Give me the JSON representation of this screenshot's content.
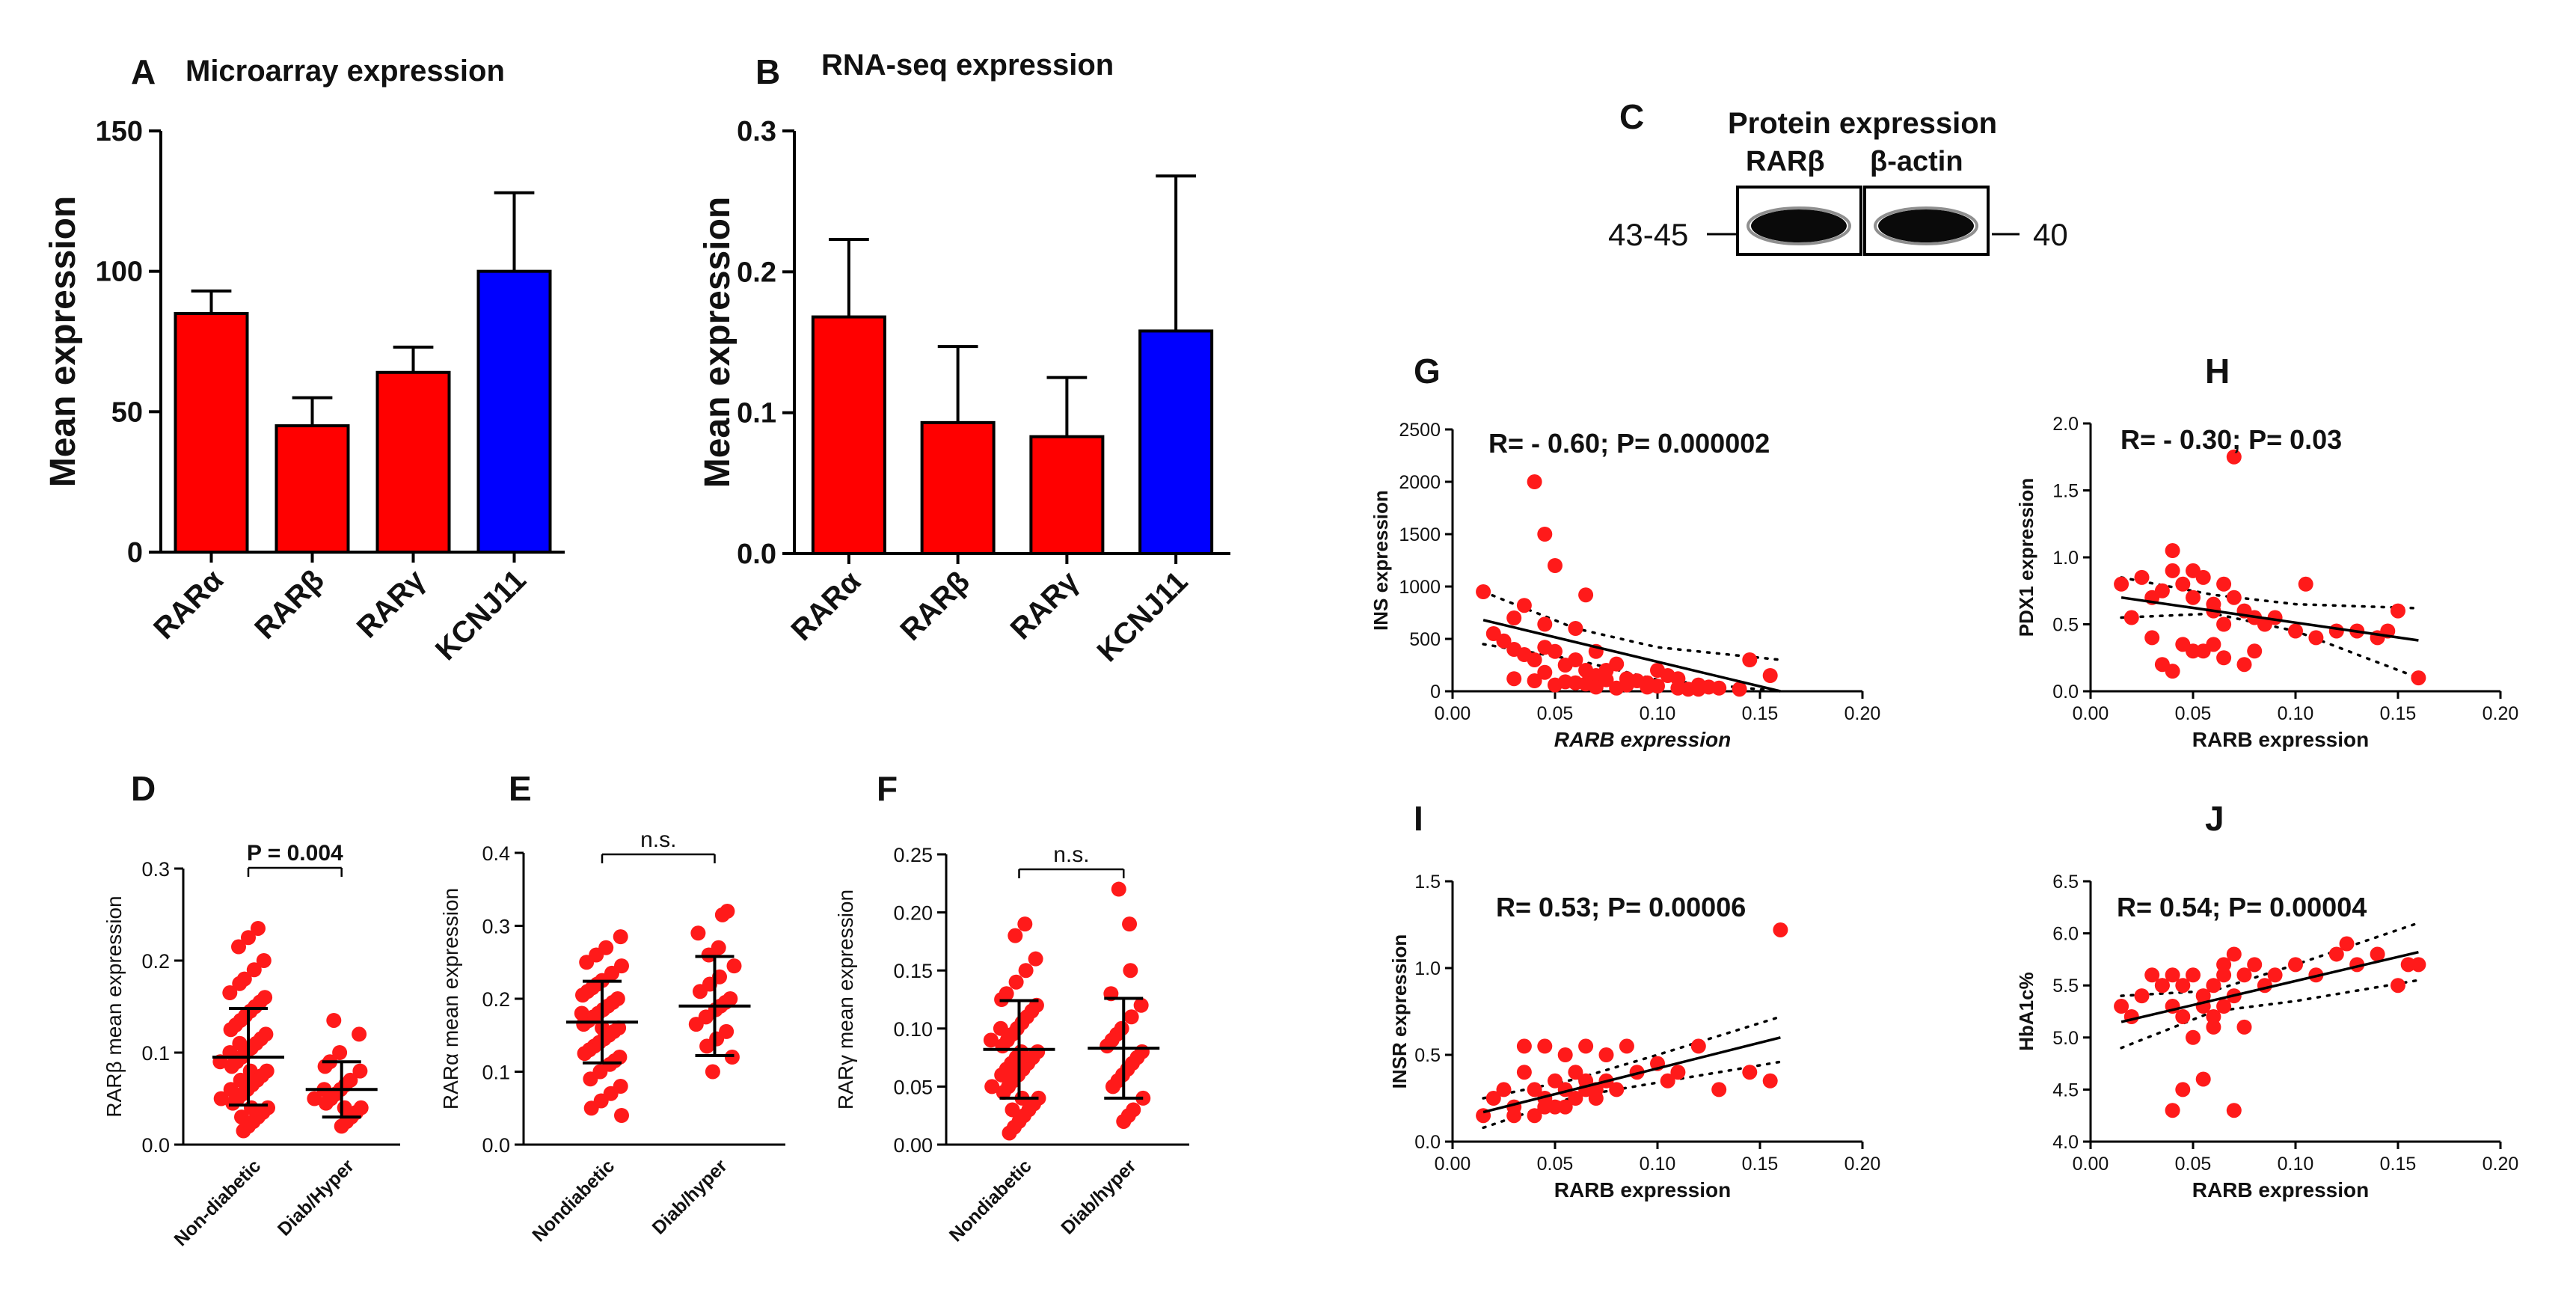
{
  "chart_data": [
    {
      "panel": "A",
      "type": "bar",
      "title": "Microarray expression",
      "ylabel": "Mean expression",
      "categories": [
        "RARα",
        "RARβ",
        "RARγ",
        "KCNJ11"
      ],
      "values": [
        85,
        45,
        64,
        100
      ],
      "errors": [
        8,
        10,
        9,
        28
      ],
      "colors": [
        "#ff0000",
        "#ff0000",
        "#ff0000",
        "#0000ff"
      ],
      "ylim": [
        0,
        150
      ],
      "yticks": [
        0,
        50,
        100,
        150
      ]
    },
    {
      "panel": "B",
      "type": "bar",
      "title": "RNA-seq expression",
      "ylabel": "Mean expression",
      "categories": [
        "RARα",
        "RARβ",
        "RARγ",
        "KCNJ11"
      ],
      "values": [
        0.168,
        0.093,
        0.083,
        0.158
      ],
      "errors": [
        0.055,
        0.054,
        0.042,
        0.11
      ],
      "colors": [
        "#ff0000",
        "#ff0000",
        "#ff0000",
        "#0000ff"
      ],
      "ylim": [
        0,
        0.3
      ],
      "yticks": [
        "0.0",
        "0.1",
        "0.2",
        "0.3"
      ]
    },
    {
      "panel": "C",
      "type": "blot",
      "title": "Protein expression",
      "lanes": [
        "RARβ",
        "β-actin"
      ],
      "left_marker": "43-45",
      "right_marker": "40"
    },
    {
      "panel": "D",
      "type": "scatter",
      "ylabel": "RARβ mean expression",
      "groups": [
        "Non-diabetic",
        "Diab/Hyper"
      ],
      "annotation": "P = 0.004",
      "ylim": [
        0,
        0.3
      ],
      "yticks": [
        "0.0",
        "0.1",
        "0.2",
        "0.3"
      ],
      "summary": [
        {
          "mean": 0.095,
          "sd_low": 0.043,
          "sd_high": 0.148
        },
        {
          "mean": 0.06,
          "sd_low": 0.03,
          "sd_high": 0.09
        }
      ],
      "points": [
        [
          0.235,
          0.225,
          0.215,
          0.2,
          0.19,
          0.18,
          0.175,
          0.165,
          0.16,
          0.155,
          0.15,
          0.145,
          0.14,
          0.135,
          0.13,
          0.125,
          0.12,
          0.115,
          0.11,
          0.11,
          0.105,
          0.1,
          0.1,
          0.095,
          0.09,
          0.09,
          0.085,
          0.08,
          0.08,
          0.075,
          0.07,
          0.07,
          0.065,
          0.06,
          0.06,
          0.055,
          0.05,
          0.05,
          0.045,
          0.04,
          0.04,
          0.035,
          0.03,
          0.03,
          0.025,
          0.02,
          0.015
        ],
        [
          0.135,
          0.12,
          0.1,
          0.09,
          0.085,
          0.08,
          0.07,
          0.065,
          0.06,
          0.06,
          0.055,
          0.05,
          0.05,
          0.045,
          0.04,
          0.04,
          0.035,
          0.03,
          0.025,
          0.02
        ]
      ]
    },
    {
      "panel": "E",
      "type": "scatter",
      "ylabel": "RARα mean expression",
      "groups": [
        "Nondiabetic",
        "Diab/hyper"
      ],
      "annotation": "n.s.",
      "ylim": [
        0,
        0.4
      ],
      "yticks": [
        "0.0",
        "0.1",
        "0.2",
        "0.3",
        "0.4"
      ],
      "summary": [
        {
          "mean": 0.168,
          "sd_low": 0.112,
          "sd_high": 0.224
        },
        {
          "mean": 0.19,
          "sd_low": 0.122,
          "sd_high": 0.258
        }
      ],
      "points": [
        [
          0.285,
          0.27,
          0.26,
          0.25,
          0.245,
          0.235,
          0.225,
          0.22,
          0.215,
          0.21,
          0.205,
          0.2,
          0.195,
          0.19,
          0.185,
          0.18,
          0.18,
          0.175,
          0.17,
          0.165,
          0.16,
          0.16,
          0.155,
          0.15,
          0.145,
          0.14,
          0.135,
          0.13,
          0.125,
          0.12,
          0.115,
          0.11,
          0.1,
          0.09,
          0.08,
          0.07,
          0.06,
          0.05,
          0.04
        ],
        [
          0.32,
          0.315,
          0.29,
          0.27,
          0.26,
          0.245,
          0.23,
          0.22,
          0.21,
          0.2,
          0.195,
          0.19,
          0.185,
          0.175,
          0.165,
          0.155,
          0.145,
          0.135,
          0.12,
          0.1
        ]
      ]
    },
    {
      "panel": "F",
      "type": "scatter",
      "ylabel": "RARγ mean expression",
      "groups": [
        "Nondiabetic",
        "Diab/hyper"
      ],
      "annotation": "n.s.",
      "ylim": [
        0,
        0.25
      ],
      "yticks": [
        "0.00",
        "0.05",
        "0.10",
        "0.15",
        "0.20",
        "0.25"
      ],
      "summary": [
        {
          "mean": 0.082,
          "sd_low": 0.04,
          "sd_high": 0.124
        },
        {
          "mean": 0.083,
          "sd_low": 0.04,
          "sd_high": 0.126
        }
      ],
      "points": [
        [
          0.19,
          0.18,
          0.16,
          0.15,
          0.14,
          0.13,
          0.125,
          0.12,
          0.115,
          0.11,
          0.105,
          0.1,
          0.1,
          0.095,
          0.09,
          0.09,
          0.085,
          0.08,
          0.08,
          0.075,
          0.075,
          0.07,
          0.07,
          0.065,
          0.065,
          0.06,
          0.06,
          0.055,
          0.05,
          0.05,
          0.045,
          0.04,
          0.04,
          0.035,
          0.03,
          0.03,
          0.025,
          0.02,
          0.015,
          0.01
        ],
        [
          0.22,
          0.19,
          0.15,
          0.13,
          0.12,
          0.11,
          0.1,
          0.095,
          0.09,
          0.085,
          0.08,
          0.075,
          0.07,
          0.065,
          0.06,
          0.055,
          0.05,
          0.04,
          0.03,
          0.025,
          0.02
        ]
      ]
    },
    {
      "panel": "G",
      "type": "scatter",
      "annotation": "R= - 0.60; P= 0.000002",
      "xlabel": "RARB expression",
      "ylabel": "INS expression",
      "xlim": [
        0,
        0.2
      ],
      "ylim": [
        0,
        2500
      ],
      "xticks": [
        "0.00",
        "0.05",
        "0.10",
        "0.15",
        "0.20"
      ],
      "yticks": [
        "0",
        "500",
        "1000",
        "1500",
        "2000",
        "2500"
      ],
      "fit": {
        "x1": 0.015,
        "y1": 680,
        "x2": 0.16,
        "y2": 0
      },
      "ci_upper": [
        [
          0.015,
          950
        ],
        [
          0.06,
          600
        ],
        [
          0.1,
          420
        ],
        [
          0.16,
          300
        ]
      ],
      "ci_lower": [
        [
          0.015,
          450
        ],
        [
          0.06,
          300
        ],
        [
          0.1,
          110
        ],
        [
          0.16,
          -300
        ]
      ],
      "x": [
        0.04,
        0.045,
        0.05,
        0.015,
        0.035,
        0.03,
        0.045,
        0.06,
        0.065,
        0.07,
        0.02,
        0.025,
        0.03,
        0.035,
        0.04,
        0.045,
        0.05,
        0.055,
        0.06,
        0.065,
        0.07,
        0.075,
        0.08,
        0.085,
        0.09,
        0.095,
        0.1,
        0.105,
        0.11,
        0.12,
        0.125,
        0.13,
        0.14,
        0.145,
        0.155,
        0.04,
        0.05,
        0.06,
        0.07,
        0.08,
        0.1,
        0.12,
        0.03,
        0.045,
        0.055,
        0.065,
        0.075,
        0.085,
        0.095,
        0.11,
        0.115
      ],
      "y": [
        2000,
        1500,
        1200,
        950,
        820,
        700,
        640,
        600,
        920,
        380,
        550,
        480,
        400,
        350,
        300,
        420,
        380,
        250,
        300,
        200,
        150,
        200,
        260,
        120,
        100,
        80,
        200,
        150,
        120,
        60,
        40,
        30,
        20,
        300,
        150,
        100,
        60,
        80,
        40,
        30,
        50,
        20,
        120,
        180,
        90,
        70,
        110,
        60,
        40,
        30,
        20
      ]
    },
    {
      "panel": "H",
      "type": "scatter",
      "annotation": "R= - 0.30; P= 0.03",
      "xlabel": "RARB expression",
      "ylabel": "PDX1 expression",
      "xlim": [
        0,
        0.2
      ],
      "ylim": [
        0,
        2.0
      ],
      "xticks": [
        "0.00",
        "0.05",
        "0.10",
        "0.15",
        "0.20"
      ],
      "yticks": [
        "0.0",
        "0.5",
        "1.0",
        "1.5",
        "2.0"
      ],
      "fit": {
        "x1": 0.015,
        "y1": 0.7,
        "x2": 0.16,
        "y2": 0.38
      },
      "ci_upper": [
        [
          0.015,
          0.85
        ],
        [
          0.06,
          0.72
        ],
        [
          0.1,
          0.65
        ],
        [
          0.16,
          0.62
        ]
      ],
      "ci_lower": [
        [
          0.015,
          0.55
        ],
        [
          0.06,
          0.58
        ],
        [
          0.1,
          0.45
        ],
        [
          0.16,
          0.1
        ]
      ],
      "x": [
        0.07,
        0.04,
        0.05,
        0.015,
        0.025,
        0.03,
        0.035,
        0.04,
        0.045,
        0.05,
        0.055,
        0.06,
        0.065,
        0.07,
        0.075,
        0.08,
        0.085,
        0.09,
        0.1,
        0.105,
        0.11,
        0.12,
        0.13,
        0.14,
        0.145,
        0.15,
        0.16,
        0.02,
        0.03,
        0.045,
        0.055,
        0.06,
        0.065,
        0.075,
        0.035,
        0.05,
        0.065,
        0.08,
        0.04,
        0.06
      ],
      "y": [
        1.75,
        1.05,
        0.9,
        0.8,
        0.85,
        0.7,
        0.75,
        0.9,
        0.8,
        0.7,
        0.85,
        0.65,
        0.8,
        0.7,
        0.6,
        0.55,
        0.5,
        0.55,
        0.45,
        0.8,
        0.4,
        0.45,
        0.45,
        0.4,
        0.45,
        0.6,
        0.1,
        0.55,
        0.4,
        0.35,
        0.3,
        0.35,
        0.25,
        0.2,
        0.2,
        0.3,
        0.5,
        0.3,
        0.15,
        0.6
      ]
    },
    {
      "panel": "I",
      "type": "scatter",
      "annotation": "R= 0.53; P= 0.00006",
      "xlabel": "RARB expression",
      "ylabel": "INSR expression",
      "xlim": [
        0,
        0.2
      ],
      "ylim": [
        0,
        1.5
      ],
      "xticks": [
        "0.00",
        "0.05",
        "0.10",
        "0.15",
        "0.20"
      ],
      "yticks": [
        "0.0",
        "0.5",
        "1.0",
        "1.5"
      ],
      "fit": {
        "x1": 0.015,
        "y1": 0.17,
        "x2": 0.16,
        "y2": 0.6
      },
      "ci_upper": [
        [
          0.015,
          0.25
        ],
        [
          0.06,
          0.36
        ],
        [
          0.1,
          0.5
        ],
        [
          0.16,
          0.72
        ]
      ],
      "ci_lower": [
        [
          0.015,
          0.08
        ],
        [
          0.06,
          0.26
        ],
        [
          0.1,
          0.34
        ],
        [
          0.16,
          0.46
        ]
      ],
      "x": [
        0.16,
        0.035,
        0.045,
        0.055,
        0.065,
        0.075,
        0.085,
        0.1,
        0.12,
        0.015,
        0.02,
        0.025,
        0.03,
        0.035,
        0.04,
        0.045,
        0.05,
        0.055,
        0.06,
        0.065,
        0.07,
        0.075,
        0.08,
        0.09,
        0.105,
        0.11,
        0.13,
        0.145,
        0.155,
        0.04,
        0.05,
        0.06,
        0.07,
        0.03,
        0.045,
        0.055,
        0.065
      ],
      "y": [
        1.22,
        0.55,
        0.55,
        0.5,
        0.55,
        0.5,
        0.55,
        0.45,
        0.55,
        0.15,
        0.25,
        0.3,
        0.2,
        0.4,
        0.3,
        0.25,
        0.35,
        0.3,
        0.4,
        0.35,
        0.3,
        0.35,
        0.3,
        0.4,
        0.35,
        0.4,
        0.3,
        0.4,
        0.35,
        0.15,
        0.2,
        0.25,
        0.25,
        0.15,
        0.2,
        0.2,
        0.3
      ]
    },
    {
      "panel": "J",
      "type": "scatter",
      "annotation": "R= 0.54; P= 0.00004",
      "xlabel": "RARB expression",
      "ylabel": "HbA1c%",
      "xlim": [
        0,
        0.2
      ],
      "ylim": [
        4.0,
        6.5
      ],
      "xticks": [
        "0.00",
        "0.05",
        "0.10",
        "0.15",
        "0.20"
      ],
      "yticks": [
        "4.0",
        "4.5",
        "5.0",
        "5.5",
        "6.0",
        "6.5"
      ],
      "fit": {
        "x1": 0.015,
        "y1": 5.15,
        "x2": 0.16,
        "y2": 5.82
      },
      "ci_upper": [
        [
          0.015,
          5.4
        ],
        [
          0.06,
          5.45
        ],
        [
          0.1,
          5.7
        ],
        [
          0.16,
          6.1
        ]
      ],
      "ci_lower": [
        [
          0.015,
          4.9
        ],
        [
          0.06,
          5.25
        ],
        [
          0.1,
          5.35
        ],
        [
          0.16,
          5.55
        ]
      ],
      "x": [
        0.015,
        0.02,
        0.025,
        0.03,
        0.035,
        0.04,
        0.045,
        0.05,
        0.055,
        0.06,
        0.065,
        0.07,
        0.075,
        0.08,
        0.085,
        0.09,
        0.1,
        0.11,
        0.12,
        0.125,
        0.13,
        0.14,
        0.15,
        0.155,
        0.16,
        0.035,
        0.04,
        0.045,
        0.055,
        0.06,
        0.065,
        0.07,
        0.04,
        0.05,
        0.06,
        0.07,
        0.055,
        0.065,
        0.075,
        0.045
      ],
      "y": [
        5.3,
        5.2,
        5.4,
        5.6,
        5.5,
        5.3,
        5.5,
        5.6,
        5.4,
        5.5,
        5.7,
        5.8,
        5.6,
        5.7,
        5.5,
        5.6,
        5.7,
        5.6,
        5.8,
        5.9,
        5.7,
        5.8,
        5.5,
        5.7,
        5.7,
        5.5,
        4.3,
        4.5,
        4.6,
        5.2,
        5.3,
        4.3,
        5.6,
        5.0,
        5.1,
        5.4,
        5.3,
        5.6,
        5.1,
        5.2
      ]
    }
  ]
}
